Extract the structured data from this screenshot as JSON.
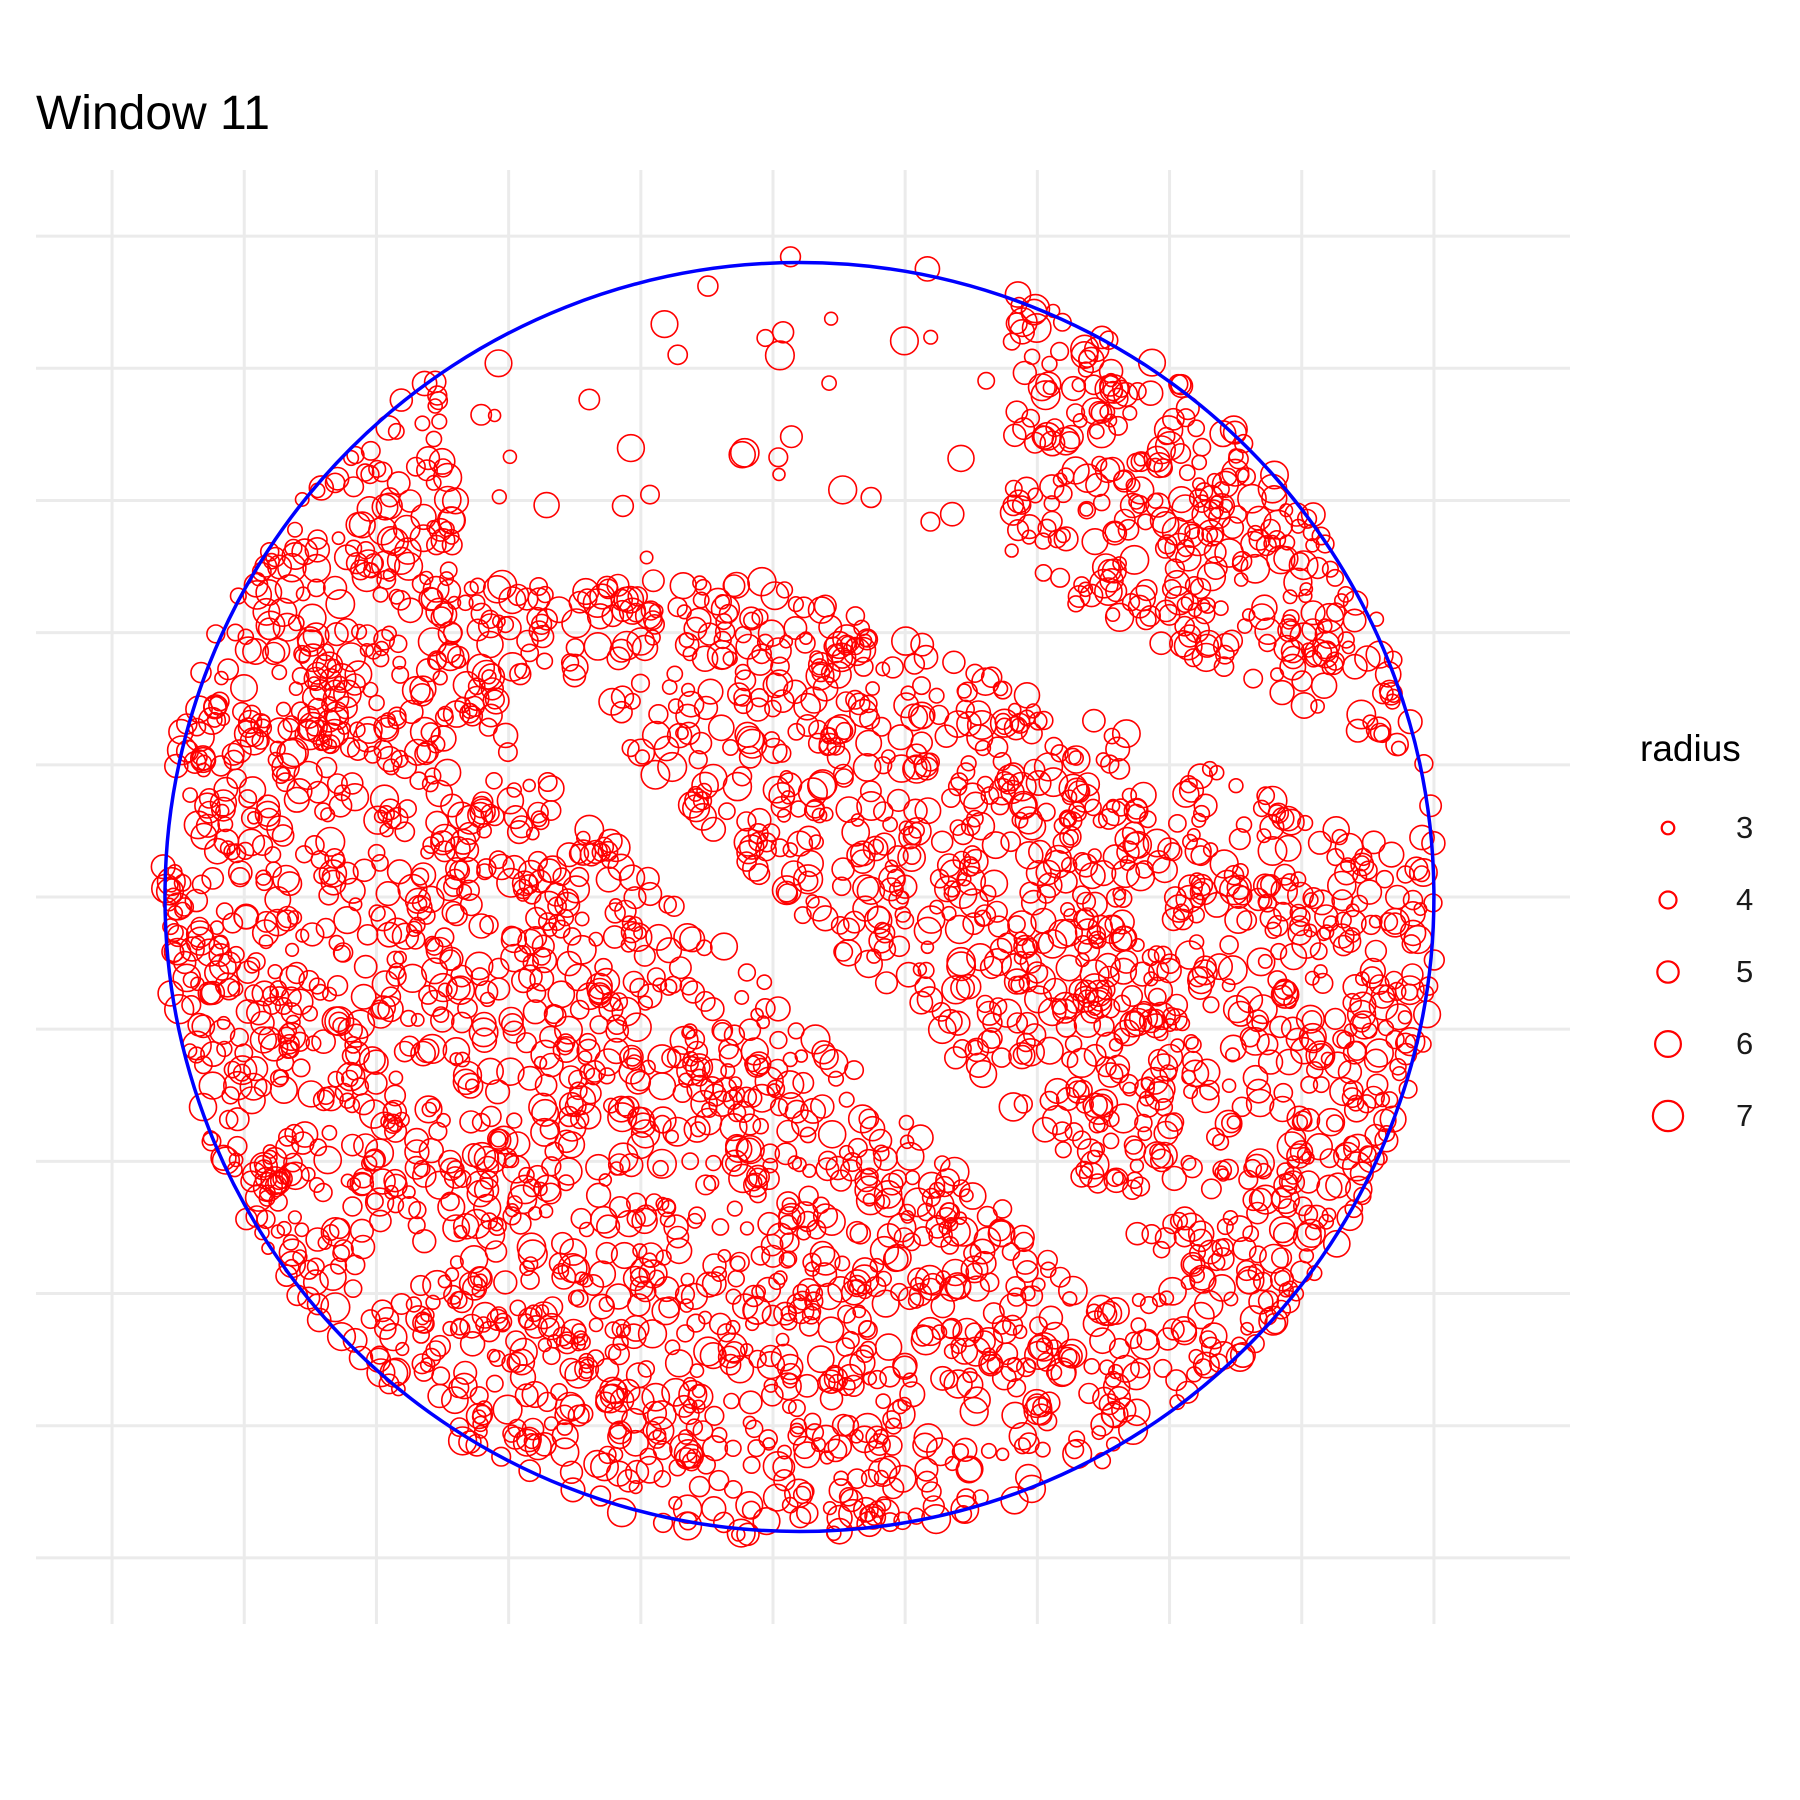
{
  "title": "Window 11",
  "chart_data": {
    "type": "scatter",
    "title": "Window 11",
    "xlabel": "",
    "ylabel": "",
    "axis_text": "none",
    "grid": true,
    "x_breaks": [
      0,
      1,
      2,
      3,
      4,
      5,
      6,
      7,
      8,
      9,
      10
    ],
    "y_breaks": [
      0,
      1,
      2,
      3,
      4,
      5,
      6,
      7,
      8,
      9,
      10
    ],
    "xlim": [
      -0.5,
      10.5
    ],
    "ylim": [
      -0.5,
      10.5
    ],
    "window": {
      "shape": "disc",
      "center": [
        5.2,
        5.0
      ],
      "radius": 4.8,
      "color": "#0000ff"
    },
    "point_color": "#ff0000",
    "point_shape": "open-circle",
    "size_variable": "radius",
    "size_range": [
      3,
      7
    ],
    "point_count": 3400,
    "empty_bands": [
      {
        "from": [
          3.2,
          6.4
        ],
        "to": [
          7.5,
          2.3
        ],
        "half_width": 0.28
      },
      {
        "from": [
          4.5,
          8.0
        ],
        "to": [
          9.6,
          5.8
        ],
        "half_width": 0.35
      }
    ]
  },
  "legend": {
    "title": "radius",
    "position": "right",
    "items": [
      {
        "label": "3",
        "size": 3
      },
      {
        "label": "4",
        "size": 4
      },
      {
        "label": "5",
        "size": 5
      },
      {
        "label": "6",
        "size": 6
      },
      {
        "label": "7",
        "size": 7
      }
    ]
  }
}
